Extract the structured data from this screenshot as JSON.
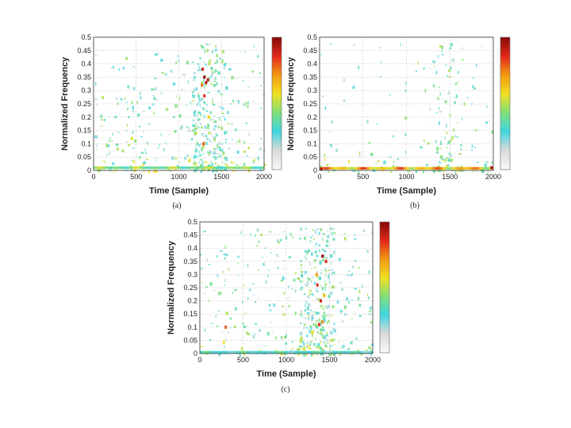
{
  "figure": {
    "panels": [
      {
        "caption": "(a)"
      },
      {
        "caption": "(b)"
      },
      {
        "caption": "(c)"
      }
    ]
  },
  "colorbar": {
    "colors": [
      "#f7f7f7",
      "#d9d9d9",
      "#3fd6e0",
      "#7fe07a",
      "#f0e020",
      "#f39c12",
      "#e52b1b",
      "#8b0a0a"
    ]
  },
  "chart_data": [
    {
      "type": "heatmap",
      "caption": "(a)",
      "xlabel": "Time (Sample)",
      "ylabel": "Normalized Frequency",
      "xlim": [
        0,
        2000
      ],
      "ylim": [
        0,
        0.5
      ],
      "xticks": [
        "0",
        "500",
        "1000",
        "1500",
        "2000"
      ],
      "yticks": [
        "0",
        "0.05",
        "0.1",
        "0.15",
        "0.2",
        "0.25",
        "0.3",
        "0.35",
        "0.4",
        "0.45",
        "0.5"
      ],
      "grid": true,
      "colorbar": true,
      "hotspots": [
        {
          "time": 1300,
          "freq": 0.35,
          "level": 1.0
        },
        {
          "time": 1320,
          "freq": 0.33,
          "level": 0.95
        },
        {
          "time": 1280,
          "freq": 0.38,
          "level": 0.9
        },
        {
          "time": 1300,
          "freq": 0.28,
          "level": 0.85
        },
        {
          "time": 1290,
          "freq": 0.1,
          "level": 0.8
        },
        {
          "time": 1340,
          "freq": 0.34,
          "level": 0.9
        },
        {
          "time": 1270,
          "freq": 0.32,
          "level": 0.75
        },
        {
          "time": 450,
          "freq": 0.12,
          "level": 0.55
        },
        {
          "time": 1200,
          "freq": 0.14,
          "level": 0.5
        },
        {
          "time": 1350,
          "freq": 0.2,
          "level": 0.6
        }
      ],
      "baseline_band": {
        "freq": 0.01,
        "level": 0.55
      }
    },
    {
      "type": "heatmap",
      "caption": "(b)",
      "xlabel": "Time (Sample)",
      "ylabel": "Normalized Frequency",
      "xlim": [
        0,
        2000
      ],
      "ylim": [
        0,
        0.5
      ],
      "xticks": [
        "0",
        "500",
        "1000",
        "1500",
        "2000"
      ],
      "yticks": [
        "0",
        "0.05",
        "0.1",
        "0.15",
        "0.2",
        "0.25",
        "0.3",
        "0.35",
        "0.4",
        "0.45",
        "0.5"
      ],
      "grid": true,
      "colorbar": true,
      "hotspots": [
        {
          "time": 20,
          "freq": 0.005,
          "level": 0.95
        },
        {
          "time": 1980,
          "freq": 0.01,
          "level": 0.95
        },
        {
          "time": 1400,
          "freq": 0.05,
          "level": 0.45
        },
        {
          "time": 600,
          "freq": 0.06,
          "level": 0.4
        }
      ],
      "baseline_band": {
        "freq": 0.008,
        "level": 0.85
      }
    },
    {
      "type": "heatmap",
      "caption": "(c)",
      "xlabel": "Time (Sample)",
      "ylabel": "Normalized Frequency",
      "xlim": [
        0,
        2000
      ],
      "ylim": [
        0,
        0.5
      ],
      "xticks": [
        "0",
        "500",
        "1000",
        "1500",
        "2000"
      ],
      "yticks": [
        "0",
        "0.05",
        "0.1",
        "0.15",
        "0.2",
        "0.25",
        "0.3",
        "0.35",
        "0.4",
        "0.45",
        "0.5"
      ],
      "grid": true,
      "colorbar": true,
      "hotspots": [
        {
          "time": 1420,
          "freq": 0.37,
          "level": 1.0
        },
        {
          "time": 1460,
          "freq": 0.35,
          "level": 0.9
        },
        {
          "time": 1400,
          "freq": 0.2,
          "level": 0.9
        },
        {
          "time": 1360,
          "freq": 0.26,
          "level": 0.85
        },
        {
          "time": 1380,
          "freq": 0.11,
          "level": 0.85
        },
        {
          "time": 300,
          "freq": 0.1,
          "level": 0.8
        },
        {
          "time": 1420,
          "freq": 0.12,
          "level": 0.75
        },
        {
          "time": 1350,
          "freq": 0.3,
          "level": 0.7
        },
        {
          "time": 1440,
          "freq": 0.22,
          "level": 0.65
        },
        {
          "time": 1300,
          "freq": 0.08,
          "level": 0.6
        }
      ],
      "baseline_band": {
        "freq": 0.005,
        "level": 0.4
      }
    }
  ]
}
